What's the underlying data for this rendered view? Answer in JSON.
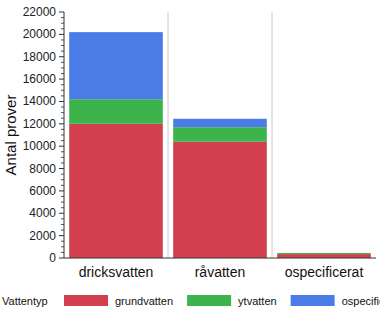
{
  "chart_data": {
    "type": "bar",
    "stacked": true,
    "y_label": "Antal prover",
    "legend_title": "Vattentyp",
    "categories": [
      "dricksvatten",
      "råvatten",
      "ospecificerat"
    ],
    "series": [
      {
        "name": "grundvatten",
        "color": "#d2404f",
        "values": [
          12000,
          10400,
          350
        ]
      },
      {
        "name": "ytvatten",
        "color": "#3cb44b",
        "values": [
          2200,
          1300,
          100
        ]
      },
      {
        "name": "ospecificerat",
        "color": "#4a7be6",
        "values": [
          6000,
          750,
          0
        ]
      }
    ],
    "ylim": [
      0,
      22000
    ],
    "yticks": [
      0,
      2000,
      4000,
      6000,
      8000,
      10000,
      12000,
      14000,
      16000,
      18000,
      20000,
      22000
    ],
    "legend": "bottom"
  }
}
